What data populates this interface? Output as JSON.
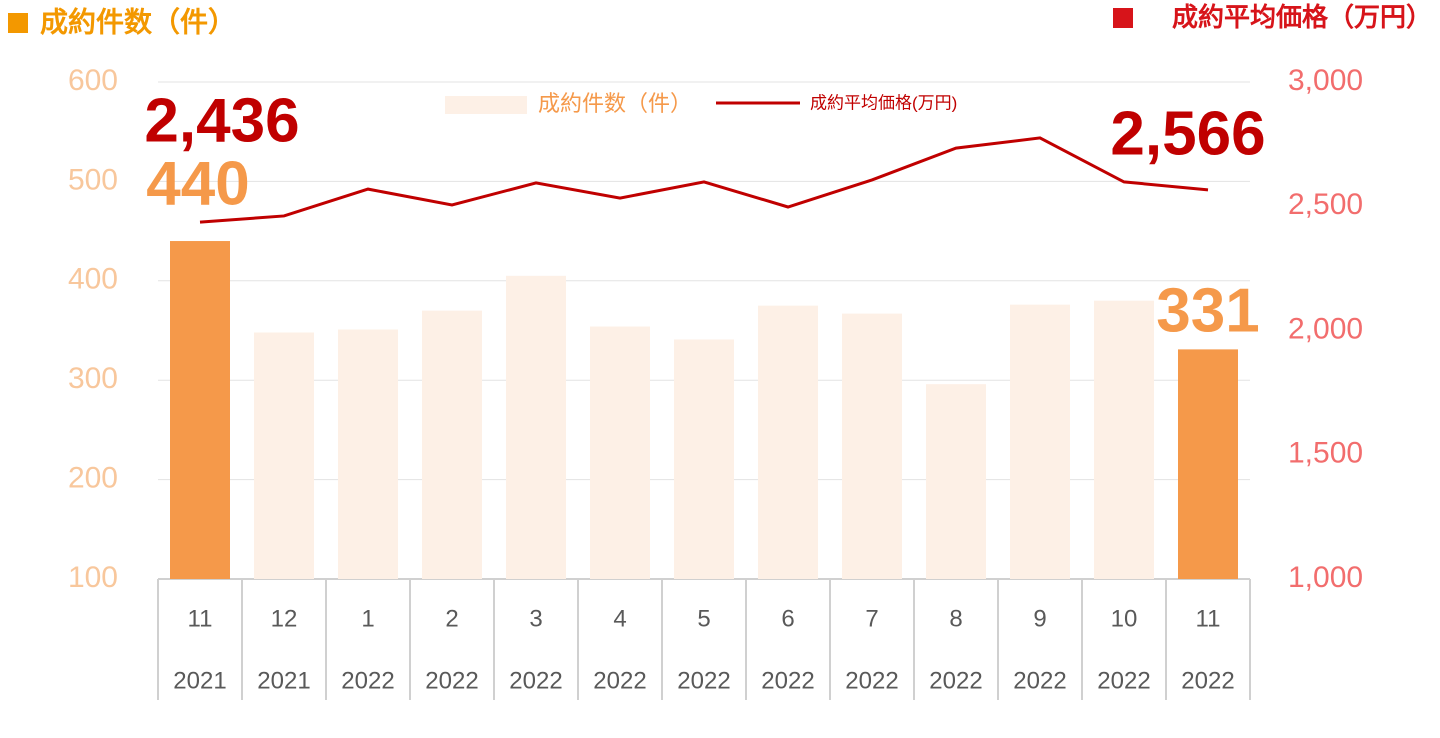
{
  "chart_data": {
    "type": "bar-line",
    "title_left": "成約件数（件）",
    "title_right": "成約平均価格（万円）",
    "categories": [
      "11",
      "12",
      "1",
      "2",
      "3",
      "4",
      "5",
      "6",
      "7",
      "8",
      "9",
      "10",
      "11"
    ],
    "category_years": [
      "2021",
      "2021",
      "2022",
      "2022",
      "2022",
      "2022",
      "2022",
      "2022",
      "2022",
      "2022",
      "2022",
      "2022",
      "2022"
    ],
    "series": [
      {
        "name": "成約件数（件）",
        "type": "bar",
        "color": "#fdf0e6",
        "colors": [
          "#f5994a",
          "#fdf0e6",
          "#fdf0e6",
          "#fdf0e6",
          "#fdf0e6",
          "#fdf0e6",
          "#fdf0e6",
          "#fdf0e6",
          "#fdf0e6",
          "#fdf0e6",
          "#fdf0e6",
          "#fdf0e6",
          "#f5994a"
        ],
        "label_color": "#f5994a",
        "values": [
          440,
          348,
          351,
          370,
          405,
          354,
          341,
          375,
          367,
          296,
          376,
          380,
          331
        ],
        "value_labels": [
          "440",
          null,
          null,
          null,
          null,
          null,
          null,
          null,
          null,
          null,
          null,
          null,
          "331"
        ]
      },
      {
        "name": "成約平均価格(万円)",
        "type": "line",
        "axis": "y2",
        "color": "#c00000",
        "label_color": "#c00000",
        "values": [
          2436,
          2461,
          2569,
          2505,
          2594,
          2533,
          2598,
          2497,
          2606,
          2734,
          2775,
          2598,
          2566
        ],
        "value_labels": [
          "2,436",
          null,
          null,
          null,
          null,
          null,
          null,
          null,
          null,
          null,
          null,
          null,
          "2,566"
        ]
      }
    ],
    "ylim": [
      100,
      600
    ],
    "yticks": [
      100,
      200,
      300,
      400,
      500,
      600
    ],
    "ytick_color": "#f8c79c",
    "y2lim": [
      1000,
      3000
    ],
    "y2ticks": [
      {
        "value": 1000,
        "label": "1,000"
      },
      {
        "value": 1500,
        "label": "1,500"
      },
      {
        "value": 2000,
        "label": "2,000"
      },
      {
        "value": 2500,
        "label": "2,500"
      },
      {
        "value": 3000,
        "label": "3,000"
      }
    ],
    "y2tick_color": "#f26d6d",
    "grid": true
  }
}
